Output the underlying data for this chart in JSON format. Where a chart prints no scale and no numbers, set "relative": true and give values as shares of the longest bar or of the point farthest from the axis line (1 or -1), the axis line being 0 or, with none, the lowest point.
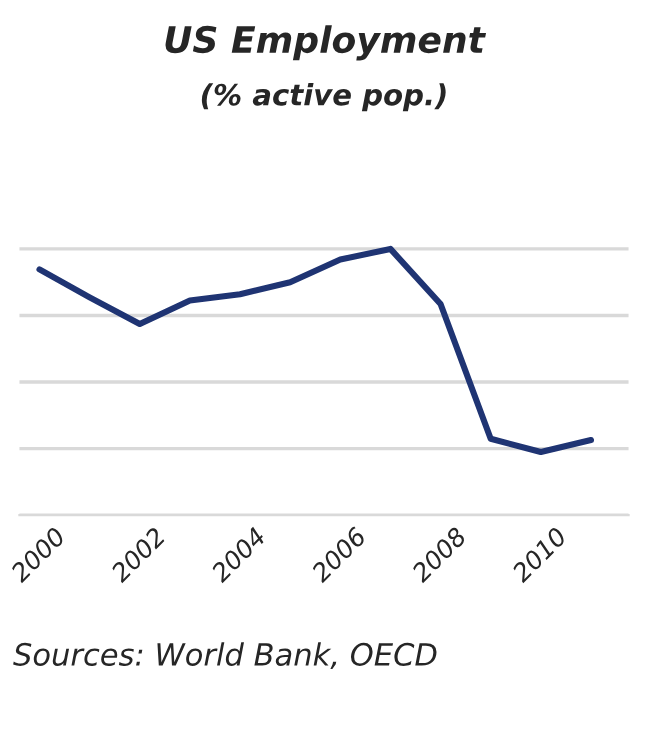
{
  "chart_data": {
    "type": "line",
    "title": "US Employment",
    "subtitle": "(% active pop.)",
    "relative": true,
    "x": [
      2000,
      2001,
      2002,
      2003,
      2004,
      2005,
      2006,
      2007,
      2008,
      2009,
      2010,
      2011
    ],
    "xlim": [
      1999.6,
      2011.75
    ],
    "xticks": [
      2000,
      2002,
      2004,
      2006,
      2008,
      2010
    ],
    "series": [
      {
        "color": "#1f3473",
        "values": [
          0.923,
          0.818,
          0.718,
          0.806,
          0.83,
          0.875,
          0.96,
          1.0,
          0.793,
          0.287,
          0.237,
          0.282
        ]
      }
    ],
    "grid": "y",
    "legend": false,
    "marker": "none",
    "line_style": "solid",
    "annotations": [
      "Sources: World Bank, OECD"
    ]
  }
}
